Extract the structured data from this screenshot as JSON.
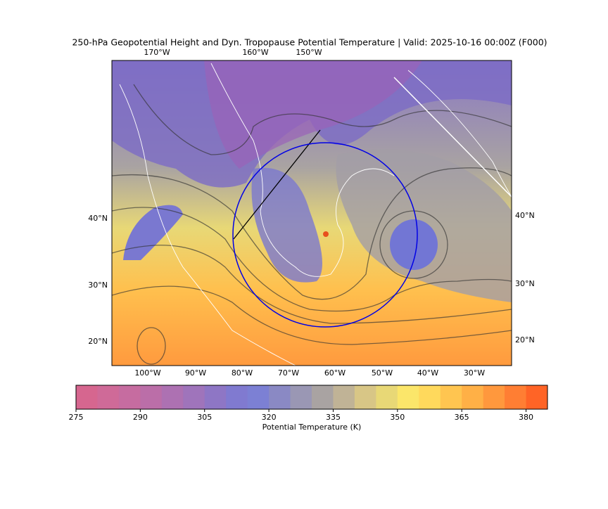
{
  "title": "250-hPa Geopotential Height and Dyn. Tropopause Potential Temperature   |  Valid: 2025-10-16 00:00Z (F000)",
  "map": {
    "top_lon_labels": [
      "170°W",
      "160°W",
      "150°W"
    ],
    "bottom_lon_labels": [
      "100°W",
      "90°W",
      "80°W",
      "70°W",
      "60°W",
      "50°W",
      "40°W",
      "30°W"
    ],
    "left_lat_labels": [
      "40°N",
      "30°N",
      "20°N"
    ],
    "right_lat_labels": [
      "40°N",
      "30°N",
      "20°N"
    ]
  },
  "colorbar": {
    "label": "Potential Temperature (K)",
    "range": [
      275,
      385
    ],
    "ticks": [
      275,
      290,
      305,
      320,
      335,
      350,
      365,
      380
    ],
    "colors": [
      "#d6668f",
      "#cf6a98",
      "#c66ca0",
      "#bb6ea8",
      "#ad71b2",
      "#9f74bb",
      "#8e76c5",
      "#807ad0",
      "#7c80d4",
      "#8a89c4",
      "#9a97b4",
      "#a9a3a2",
      "#c0b396",
      "#d8c686",
      "#e8d876",
      "#fbe66a",
      "#ffd95c",
      "#ffc550",
      "#ffb046",
      "#ff983d",
      "#ff7e33",
      "#ff6426"
    ]
  }
}
